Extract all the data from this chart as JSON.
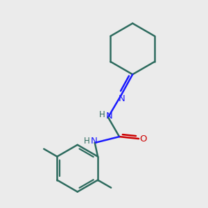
{
  "background_color": "#ebebeb",
  "bond_color": "#2d6b5e",
  "n_color": "#1a1aff",
  "o_color": "#cc0000",
  "bond_width": 1.8,
  "figsize": [
    3.0,
    3.0
  ],
  "dpi": 100,
  "xlim": [
    0,
    10
  ],
  "ylim": [
    0,
    10
  ]
}
